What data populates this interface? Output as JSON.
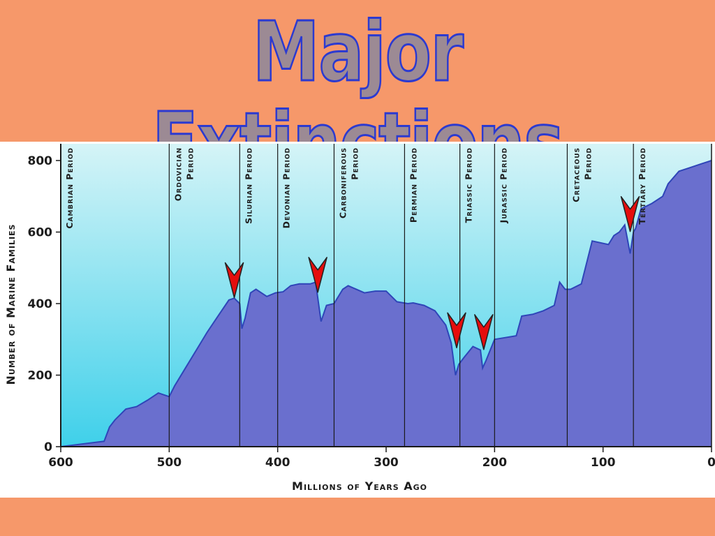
{
  "slide": {
    "title": "Major Extinctions",
    "background_color": "#f6986a",
    "title_fill": "#9c8a94",
    "title_outline": "#2c3ad0"
  },
  "chart_data": {
    "type": "area",
    "title": "",
    "xlabel": "Millions of Years Ago",
    "ylabel": "Number of Marine Families",
    "xlim": [
      600,
      0
    ],
    "ylim": [
      0,
      800
    ],
    "x_ticks": [
      "600",
      "500",
      "400",
      "300",
      "200",
      "100",
      "0"
    ],
    "y_ticks": [
      "0",
      "200",
      "400",
      "600",
      "800"
    ],
    "grid": false,
    "series": [
      {
        "x": [
          600,
          560,
          555,
          550,
          540,
          530,
          520,
          510,
          500,
          495,
          485,
          475,
          465,
          455,
          445,
          440,
          435,
          433,
          430,
          425,
          420,
          410,
          402,
          395,
          388,
          380,
          370,
          365,
          360,
          355,
          348,
          340,
          335,
          320,
          310,
          300,
          290,
          280,
          275,
          265,
          255,
          245,
          240,
          236,
          233,
          228,
          220,
          213,
          211,
          208,
          200,
          190,
          180,
          175,
          165,
          155,
          145,
          140,
          135,
          130,
          120,
          110,
          95,
          90,
          85,
          80,
          75,
          72,
          70,
          65,
          55,
          45,
          40,
          30,
          20,
          10,
          0
        ],
        "y": [
          0,
          15,
          55,
          75,
          105,
          112,
          130,
          150,
          140,
          170,
          220,
          270,
          320,
          365,
          410,
          415,
          400,
          330,
          360,
          430,
          440,
          420,
          430,
          433,
          450,
          455,
          455,
          460,
          350,
          395,
          400,
          440,
          450,
          430,
          435,
          435,
          405,
          400,
          402,
          395,
          380,
          340,
          290,
          200,
          230,
          250,
          280,
          270,
          220,
          240,
          300,
          305,
          310,
          365,
          370,
          380,
          395,
          460,
          440,
          440,
          455,
          575,
          565,
          590,
          600,
          620,
          540,
          600,
          610,
          665,
          680,
          700,
          735,
          770,
          780,
          790,
          800
        ]
      }
    ],
    "periods": [
      {
        "label": "Cambrian Period",
        "start": 600,
        "end": 500
      },
      {
        "label": "Ordovician Period",
        "start": 500,
        "end": 435
      },
      {
        "label": "Silurian Period",
        "start": 435,
        "end": 400
      },
      {
        "label": "Devonian Period",
        "start": 400,
        "end": 348
      },
      {
        "label": "Carboniferous Period",
        "start": 348,
        "end": 283
      },
      {
        "label": "Permian Period",
        "start": 283,
        "end": 232
      },
      {
        "label": "Triassic Period",
        "start": 232,
        "end": 200
      },
      {
        "label": "Jurassic Period",
        "start": 200,
        "end": 133
      },
      {
        "label": "Cretaceous Period",
        "start": 133,
        "end": 72
      },
      {
        "label": "Tertiary Period",
        "start": 72,
        "end": 0
      }
    ],
    "boundaries": [
      500,
      435,
      400,
      348,
      283,
      232,
      200,
      133,
      72
    ],
    "extinction_markers": [
      {
        "x": 440,
        "y": 440
      },
      {
        "x": 363,
        "y": 455
      },
      {
        "x": 235,
        "y": 300
      },
      {
        "x": 210,
        "y": 295
      },
      {
        "x": 75,
        "y": 625
      }
    ],
    "colors": {
      "area_fill": "#6a6fce",
      "area_stroke": "#2f45b8",
      "bg_top": "#d5f4f7",
      "bg_bottom": "#3fd0ea",
      "marker_fill": "#e50d0d",
      "marker_stroke": "#222222"
    }
  }
}
